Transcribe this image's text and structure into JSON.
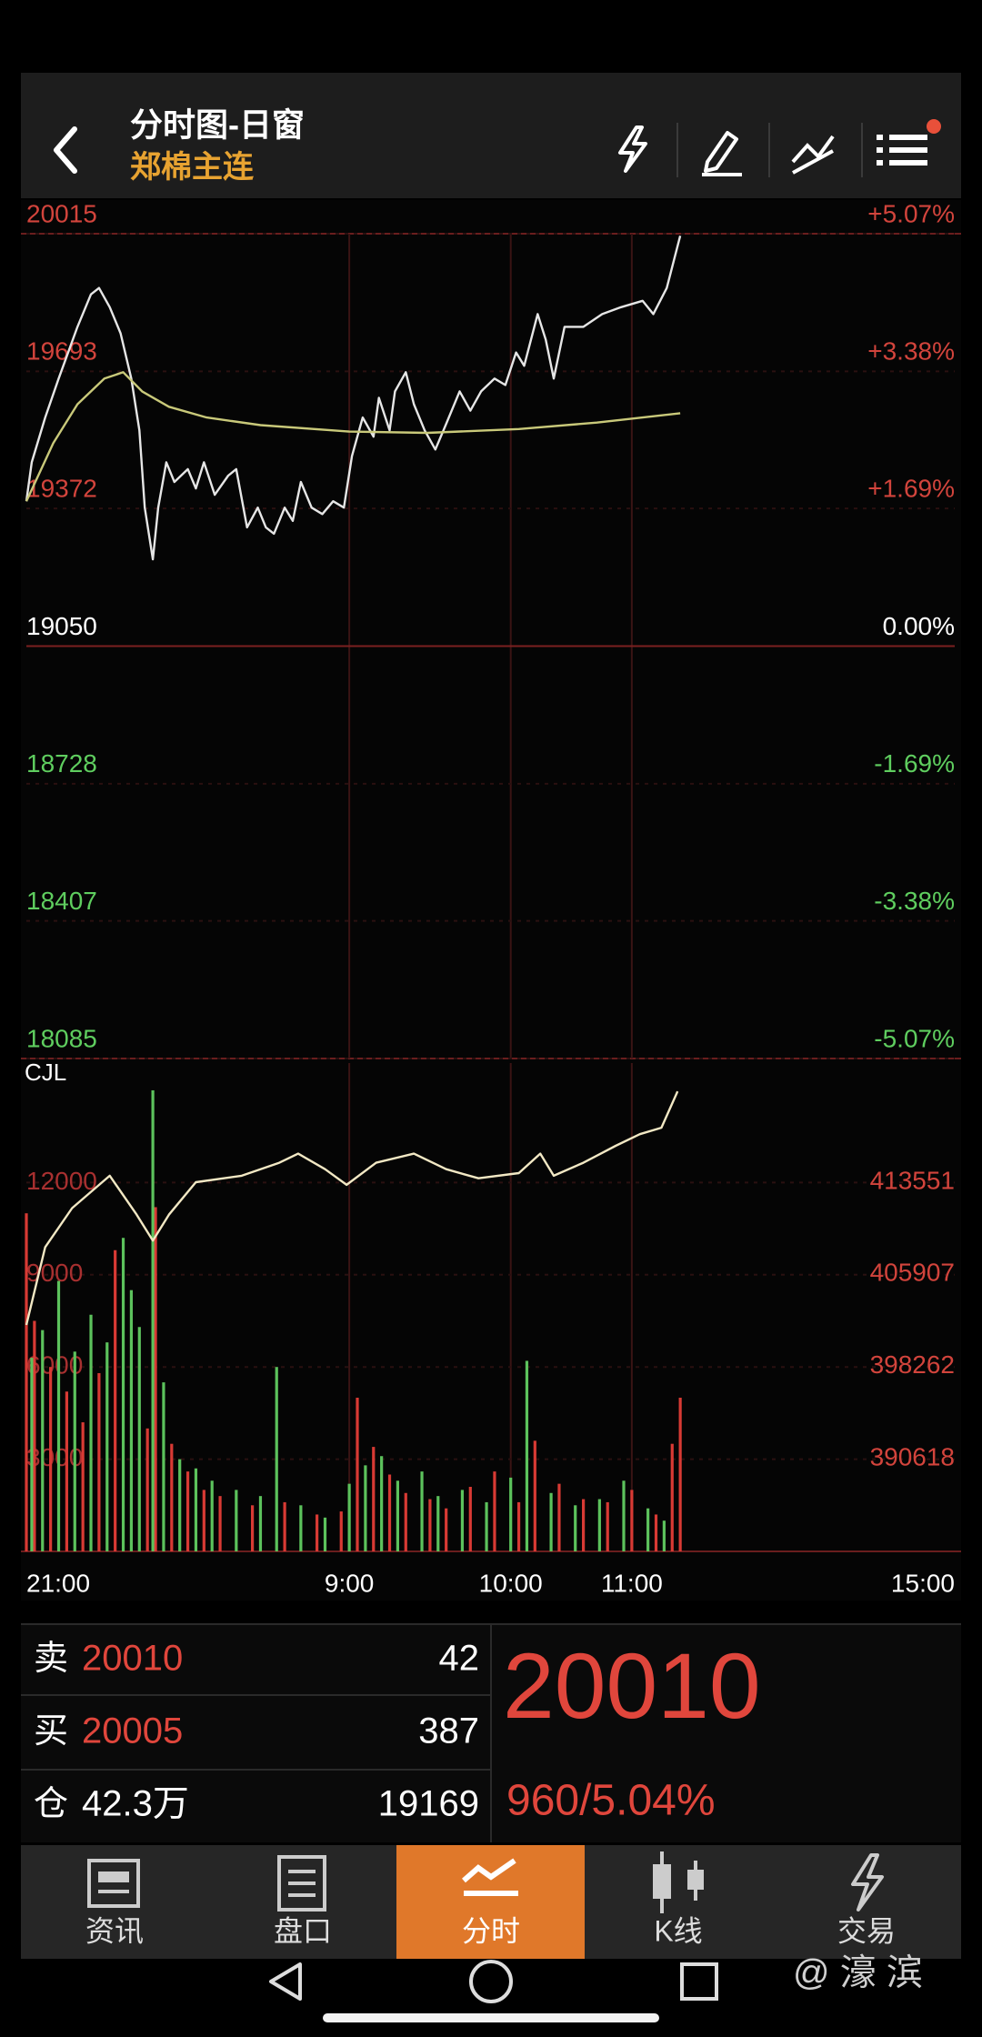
{
  "header": {
    "title": "分时图-日窗",
    "subtitle": "郑棉主连"
  },
  "chart_data": [
    {
      "type": "line",
      "xlim": [
        0,
        345
      ],
      "ylim": [
        18085,
        20015
      ],
      "yticks": [
        20015,
        19693,
        19372,
        19050,
        18728,
        18407,
        18085
      ],
      "y2lim": [
        -5.07,
        5.07
      ],
      "y2ticks": [
        {
          "value": 5.07,
          "label": "+5.07%"
        },
        {
          "value": 3.38,
          "label": "+3.38%"
        },
        {
          "value": 1.69,
          "label": "+1.69%"
        },
        {
          "value": 0,
          "label": "0.00%"
        },
        {
          "value": -1.69,
          "label": "-1.69%"
        },
        {
          "value": -3.38,
          "label": "-3.38%"
        },
        {
          "value": -5.07,
          "label": "-5.07%"
        }
      ],
      "grid": true,
      "series": [
        {
          "color": "#e6e6e6",
          "x": [
            0,
            2,
            7,
            12,
            19,
            24,
            27,
            31,
            35,
            39,
            42,
            44,
            47,
            49,
            52,
            55,
            60,
            63,
            66,
            70,
            75,
            78,
            82,
            86,
            89,
            92,
            96,
            99,
            102,
            106,
            110,
            114,
            118,
            121,
            125,
            129,
            131,
            135,
            137,
            141,
            144,
            148,
            152,
            156,
            161,
            165,
            169,
            174,
            178,
            182,
            185,
            190,
            193,
            196,
            200,
            207,
            214,
            221,
            229,
            233,
            238,
            243
          ],
          "values": [
            19389,
            19480,
            19585,
            19676,
            19797,
            19873,
            19888,
            19843,
            19782,
            19676,
            19555,
            19374,
            19253,
            19374,
            19480,
            19434,
            19464,
            19419,
            19480,
            19404,
            19449,
            19464,
            19328,
            19374,
            19328,
            19313,
            19374,
            19343,
            19434,
            19374,
            19359,
            19389,
            19374,
            19495,
            19585,
            19540,
            19631,
            19555,
            19646,
            19691,
            19616,
            19555,
            19510,
            19570,
            19646,
            19601,
            19646,
            19676,
            19661,
            19737,
            19706,
            19827,
            19767,
            19676,
            19797,
            19797,
            19827,
            19843,
            19858,
            19827,
            19888,
            20010
          ]
        },
        {
          "color": "#c9c97a",
          "x": [
            0,
            10,
            19,
            29,
            36,
            43,
            53,
            67,
            87,
            120,
            149,
            183,
            212,
            243
          ],
          "values": [
            19389,
            19525,
            19616,
            19676,
            19691,
            19646,
            19610,
            19585,
            19567,
            19552,
            19549,
            19558,
            19573,
            19595
          ]
        }
      ]
    },
    {
      "type": "bar",
      "title": "CJL",
      "xlim": [
        0,
        345
      ],
      "xticks": [
        {
          "value": 0,
          "label": "21:00"
        },
        {
          "value": 120,
          "label": "9:00"
        },
        {
          "value": 180,
          "label": "10:00"
        },
        {
          "value": 225,
          "label": "11:00"
        },
        {
          "value": 345,
          "label": "15:00"
        }
      ],
      "ylim": [
        0,
        15888
      ],
      "yticks": [
        12000,
        9000,
        6000,
        3000
      ],
      "y2lim": [
        382923,
        423434
      ],
      "y2ticks": [
        413551,
        405907,
        398262,
        390618
      ],
      "grid": true,
      "series": [
        {
          "color": "#d83a34",
          "x": [
            0,
            3,
            9,
            15,
            21,
            27,
            33,
            45,
            48,
            54,
            60,
            66,
            72,
            84,
            96,
            108,
            117,
            123,
            129,
            135,
            141,
            150,
            156,
            165,
            174,
            183,
            189,
            198,
            207,
            216,
            225,
            234,
            240,
            243
          ],
          "values": [
            11000,
            7500,
            6000,
            5200,
            4200,
            5800,
            9800,
            4000,
            11200,
            3500,
            2600,
            2000,
            1800,
            1500,
            1600,
            1200,
            1300,
            5000,
            3400,
            2500,
            1900,
            1700,
            1400,
            2100,
            2600,
            1600,
            3600,
            2200,
            1700,
            1600,
            2000,
            1200,
            3500,
            5000
          ]
        },
        {
          "color": "#5cc25c",
          "x": [
            2,
            6,
            12,
            18,
            24,
            30,
            36,
            39,
            42,
            47,
            51,
            57,
            63,
            69,
            78,
            87,
            93,
            102,
            111,
            120,
            126,
            132,
            138,
            147,
            153,
            162,
            171,
            180,
            186,
            195,
            204,
            213,
            222,
            231,
            237
          ],
          "values": [
            6300,
            7200,
            8800,
            6500,
            7700,
            6800,
            10200,
            8500,
            7300,
            15000,
            5500,
            3000,
            2700,
            2300,
            2000,
            1800,
            6000,
            1500,
            1100,
            2200,
            2800,
            3100,
            2300,
            2600,
            1800,
            2000,
            1600,
            2400,
            6200,
            1900,
            1500,
            1700,
            2300,
            1400,
            1000
          ]
        },
        {
          "color": "#f2e8c4",
          "type": "line",
          "axis": "y2",
          "x": [
            0,
            7,
            17,
            31,
            41,
            47,
            53,
            63,
            80,
            94,
            101,
            111,
            119,
            130,
            144,
            156,
            168,
            183,
            191,
            196,
            207,
            219,
            228,
            236,
            242
          ],
          "values": [
            401708,
            408168,
            411398,
            414090,
            410860,
            408707,
            410860,
            413552,
            414090,
            415167,
            415920,
            414628,
            413336,
            415167,
            415920,
            414628,
            413875,
            414305,
            415920,
            414090,
            415167,
            416566,
            417536,
            418074,
            421089
          ]
        }
      ]
    }
  ],
  "quote": {
    "ask": {
      "label": "卖",
      "price": 20010,
      "volume": 42
    },
    "bid": {
      "label": "买",
      "price": 20005,
      "volume": 387
    },
    "position": {
      "label": "仓",
      "value": "42.3万",
      "daily": 19169
    },
    "last": 20010,
    "change": "960/5.04%"
  },
  "nav": [
    "资讯",
    "盘口",
    "分时",
    "K线",
    "交易"
  ],
  "watermark": "@ 濠 滨"
}
